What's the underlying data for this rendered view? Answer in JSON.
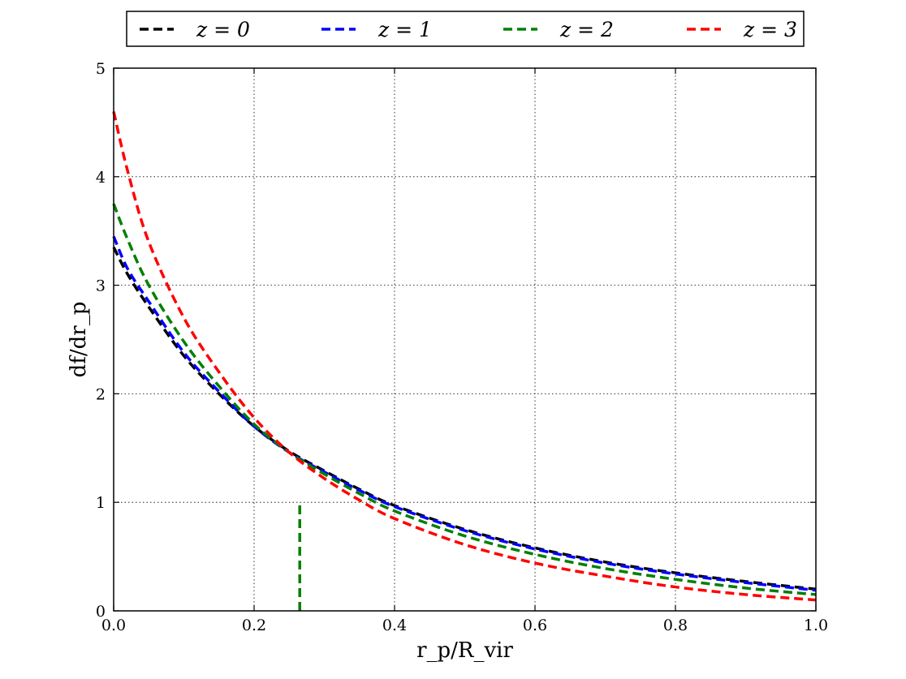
{
  "chart_data": {
    "type": "line",
    "xlabel": "r_p/R_vir",
    "ylabel": "df/dr_p",
    "xlim": [
      0.0,
      1.0
    ],
    "ylim": [
      0,
      5
    ],
    "xticks": [
      "0.0",
      "0.2",
      "0.4",
      "0.6",
      "0.8",
      "1.0"
    ],
    "yticks": [
      "0",
      "1",
      "2",
      "3",
      "4",
      "5"
    ],
    "grid": true,
    "legend_position": "top (above plot)",
    "line_style": "dashed",
    "x": [
      0.0,
      0.02,
      0.05,
      0.1,
      0.15,
      0.2,
      0.25,
      0.3,
      0.35,
      0.4,
      0.5,
      0.6,
      0.7,
      0.8,
      0.9,
      1.0
    ],
    "series": [
      {
        "name": "z = 0",
        "color": "#000000",
        "values": [
          3.35,
          3.1,
          2.8,
          2.35,
          2.0,
          1.7,
          1.47,
          1.29,
          1.12,
          0.97,
          0.75,
          0.58,
          0.45,
          0.35,
          0.27,
          0.2
        ]
      },
      {
        "name": "z = 1",
        "color": "#0000ff",
        "values": [
          3.45,
          3.15,
          2.85,
          2.38,
          2.02,
          1.7,
          1.46,
          1.28,
          1.11,
          0.96,
          0.74,
          0.57,
          0.44,
          0.34,
          0.26,
          0.19
        ]
      },
      {
        "name": "z = 2",
        "color": "#008000",
        "values": [
          3.75,
          3.42,
          3.0,
          2.48,
          2.07,
          1.72,
          1.46,
          1.26,
          1.08,
          0.92,
          0.69,
          0.52,
          0.39,
          0.29,
          0.21,
          0.15
        ]
      },
      {
        "name": "z = 3",
        "color": "#ff0000",
        "values": [
          4.6,
          4.05,
          3.4,
          2.7,
          2.2,
          1.78,
          1.46,
          1.22,
          1.02,
          0.85,
          0.61,
          0.44,
          0.32,
          0.22,
          0.15,
          0.1
        ]
      }
    ],
    "annotations": [
      {
        "type": "vertical-dashed-segment",
        "color": "#008000",
        "x": 0.265,
        "y_from": 0,
        "y_to": 1.0
      }
    ]
  }
}
